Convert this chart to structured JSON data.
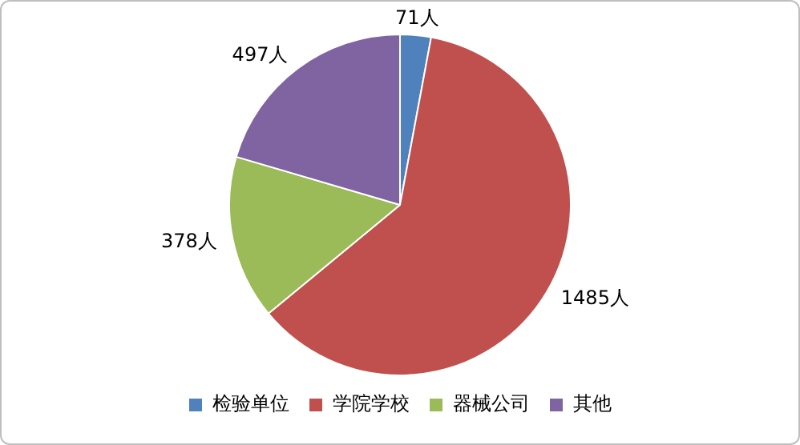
{
  "chart_data": {
    "type": "pie",
    "categories": [
      "检验单位",
      "学院学校",
      "器械公司",
      "其他"
    ],
    "values": [
      71,
      1485,
      378,
      497
    ],
    "colors": [
      "#4f81bd",
      "#c0504d",
      "#9bbb59",
      "#8064a2"
    ],
    "value_labels": [
      "71人",
      "1485人",
      "378人",
      "497人"
    ],
    "legend": "bottom"
  }
}
